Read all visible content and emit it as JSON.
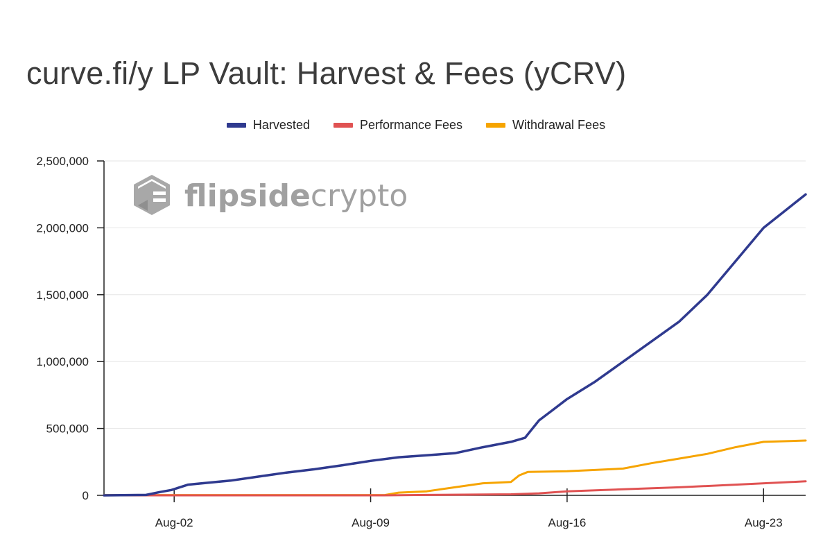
{
  "chart_data": {
    "type": "line",
    "title": "curve.fi/y LP Vault: Harvest & Fees (yCRV)",
    "watermark": {
      "brand_bold": "flipside",
      "brand_light": "crypto"
    },
    "xlabel": "",
    "ylabel": "",
    "x_tick_labels": [
      "Aug-02",
      "Aug-09",
      "Aug-16",
      "Aug-23"
    ],
    "x_tick_days": [
      2,
      9,
      16,
      23
    ],
    "xlim_days": [
      -0.5,
      24.5
    ],
    "ylim": [
      0,
      2500000
    ],
    "y_ticks": [
      0,
      500000,
      1000000,
      1500000,
      2000000,
      2500000
    ],
    "y_tick_labels": [
      "0",
      "500,000",
      "1,000,000",
      "1,500,000",
      "2,000,000",
      "2,500,000"
    ],
    "grid": true,
    "legend_position": "top-center",
    "series": [
      {
        "name": "Harvested",
        "color": "#2f3a8f",
        "points": [
          [
            -0.5,
            0
          ],
          [
            1,
            3000
          ],
          [
            1.5,
            25000
          ],
          [
            1.9,
            40000
          ],
          [
            2.5,
            80000
          ],
          [
            3,
            90000
          ],
          [
            4,
            110000
          ],
          [
            5,
            140000
          ],
          [
            6,
            170000
          ],
          [
            7,
            195000
          ],
          [
            8,
            225000
          ],
          [
            9,
            258000
          ],
          [
            10,
            285000
          ],
          [
            11,
            300000
          ],
          [
            12,
            315000
          ],
          [
            13,
            360000
          ],
          [
            14,
            400000
          ],
          [
            14.5,
            430000
          ],
          [
            15,
            560000
          ],
          [
            15.5,
            640000
          ],
          [
            16,
            720000
          ],
          [
            17,
            850000
          ],
          [
            18,
            1000000
          ],
          [
            19,
            1150000
          ],
          [
            20,
            1300000
          ],
          [
            21,
            1500000
          ],
          [
            22,
            1750000
          ],
          [
            23,
            2000000
          ],
          [
            24.5,
            2250000
          ]
        ]
      },
      {
        "name": "Performance Fees",
        "color": "#e05252",
        "points": [
          [
            -0.5,
            0
          ],
          [
            9.5,
            0
          ],
          [
            11,
            3000
          ],
          [
            14,
            8000
          ],
          [
            15,
            15000
          ],
          [
            16,
            30000
          ],
          [
            18,
            45000
          ],
          [
            20,
            60000
          ],
          [
            22,
            80000
          ],
          [
            24.5,
            105000
          ]
        ]
      },
      {
        "name": "Withdrawal Fees",
        "color": "#f6a400",
        "points": [
          [
            -0.5,
            2000
          ],
          [
            9.5,
            2000
          ],
          [
            10,
            20000
          ],
          [
            11,
            30000
          ],
          [
            12,
            60000
          ],
          [
            13,
            90000
          ],
          [
            14,
            100000
          ],
          [
            14.3,
            150000
          ],
          [
            14.6,
            175000
          ],
          [
            16,
            180000
          ],
          [
            17,
            190000
          ],
          [
            18,
            200000
          ],
          [
            19,
            240000
          ],
          [
            20,
            275000
          ],
          [
            21,
            310000
          ],
          [
            22,
            360000
          ],
          [
            23,
            400000
          ],
          [
            24.5,
            410000
          ]
        ]
      }
    ]
  }
}
